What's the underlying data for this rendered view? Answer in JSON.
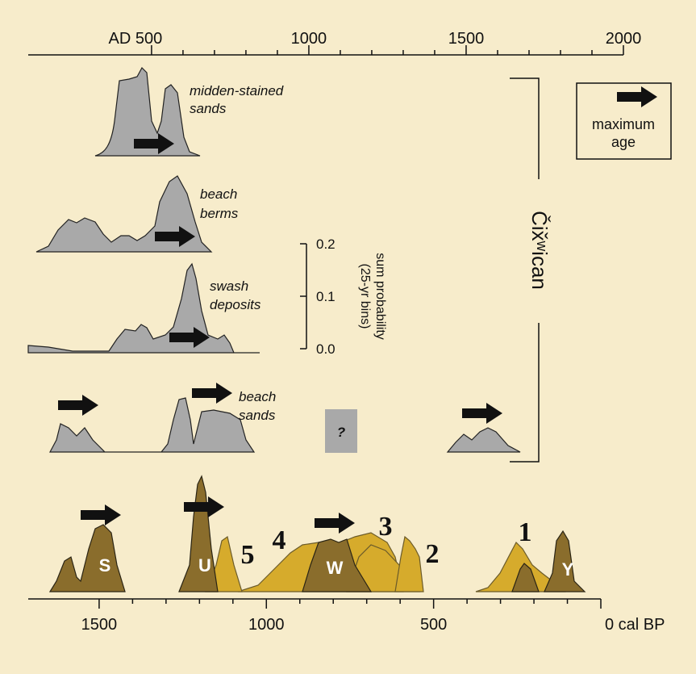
{
  "top_axis": {
    "xlim": [
      108,
      2000
    ],
    "ticks": [
      {
        "value": 500,
        "label": "AD 500"
      },
      1000,
      1500,
      2000
    ]
  },
  "bottom_axis": {
    "xlim": [
      1712,
      0
    ],
    "ticks": [
      1500,
      1000,
      500,
      {
        "value": 0,
        "label": "0 cal BP"
      }
    ]
  },
  "scale_bar": {
    "ylim": [
      0,
      0.2
    ],
    "ticks": [
      0.2,
      0.1,
      {
        "value": 0,
        "label": "0.0"
      }
    ],
    "label": [
      "sum probability",
      "(25-yr bins)"
    ]
  },
  "deposits": {
    "midden": [
      "midden-stained",
      "sands"
    ],
    "berms": [
      "beach",
      "berms"
    ],
    "swash": [
      "swash",
      "deposits"
    ],
    "sands": [
      "beach",
      "sands"
    ],
    "unknown": "?"
  },
  "group_label": "Čix̌ʷican",
  "legend": [
    "maximum",
    "age"
  ],
  "features": {
    "S": "S",
    "U": "U",
    "W": "W",
    "Y": "Y",
    "n1": "1",
    "n2": "2",
    "n3": "3",
    "n4": "4",
    "n5": "5"
  }
}
